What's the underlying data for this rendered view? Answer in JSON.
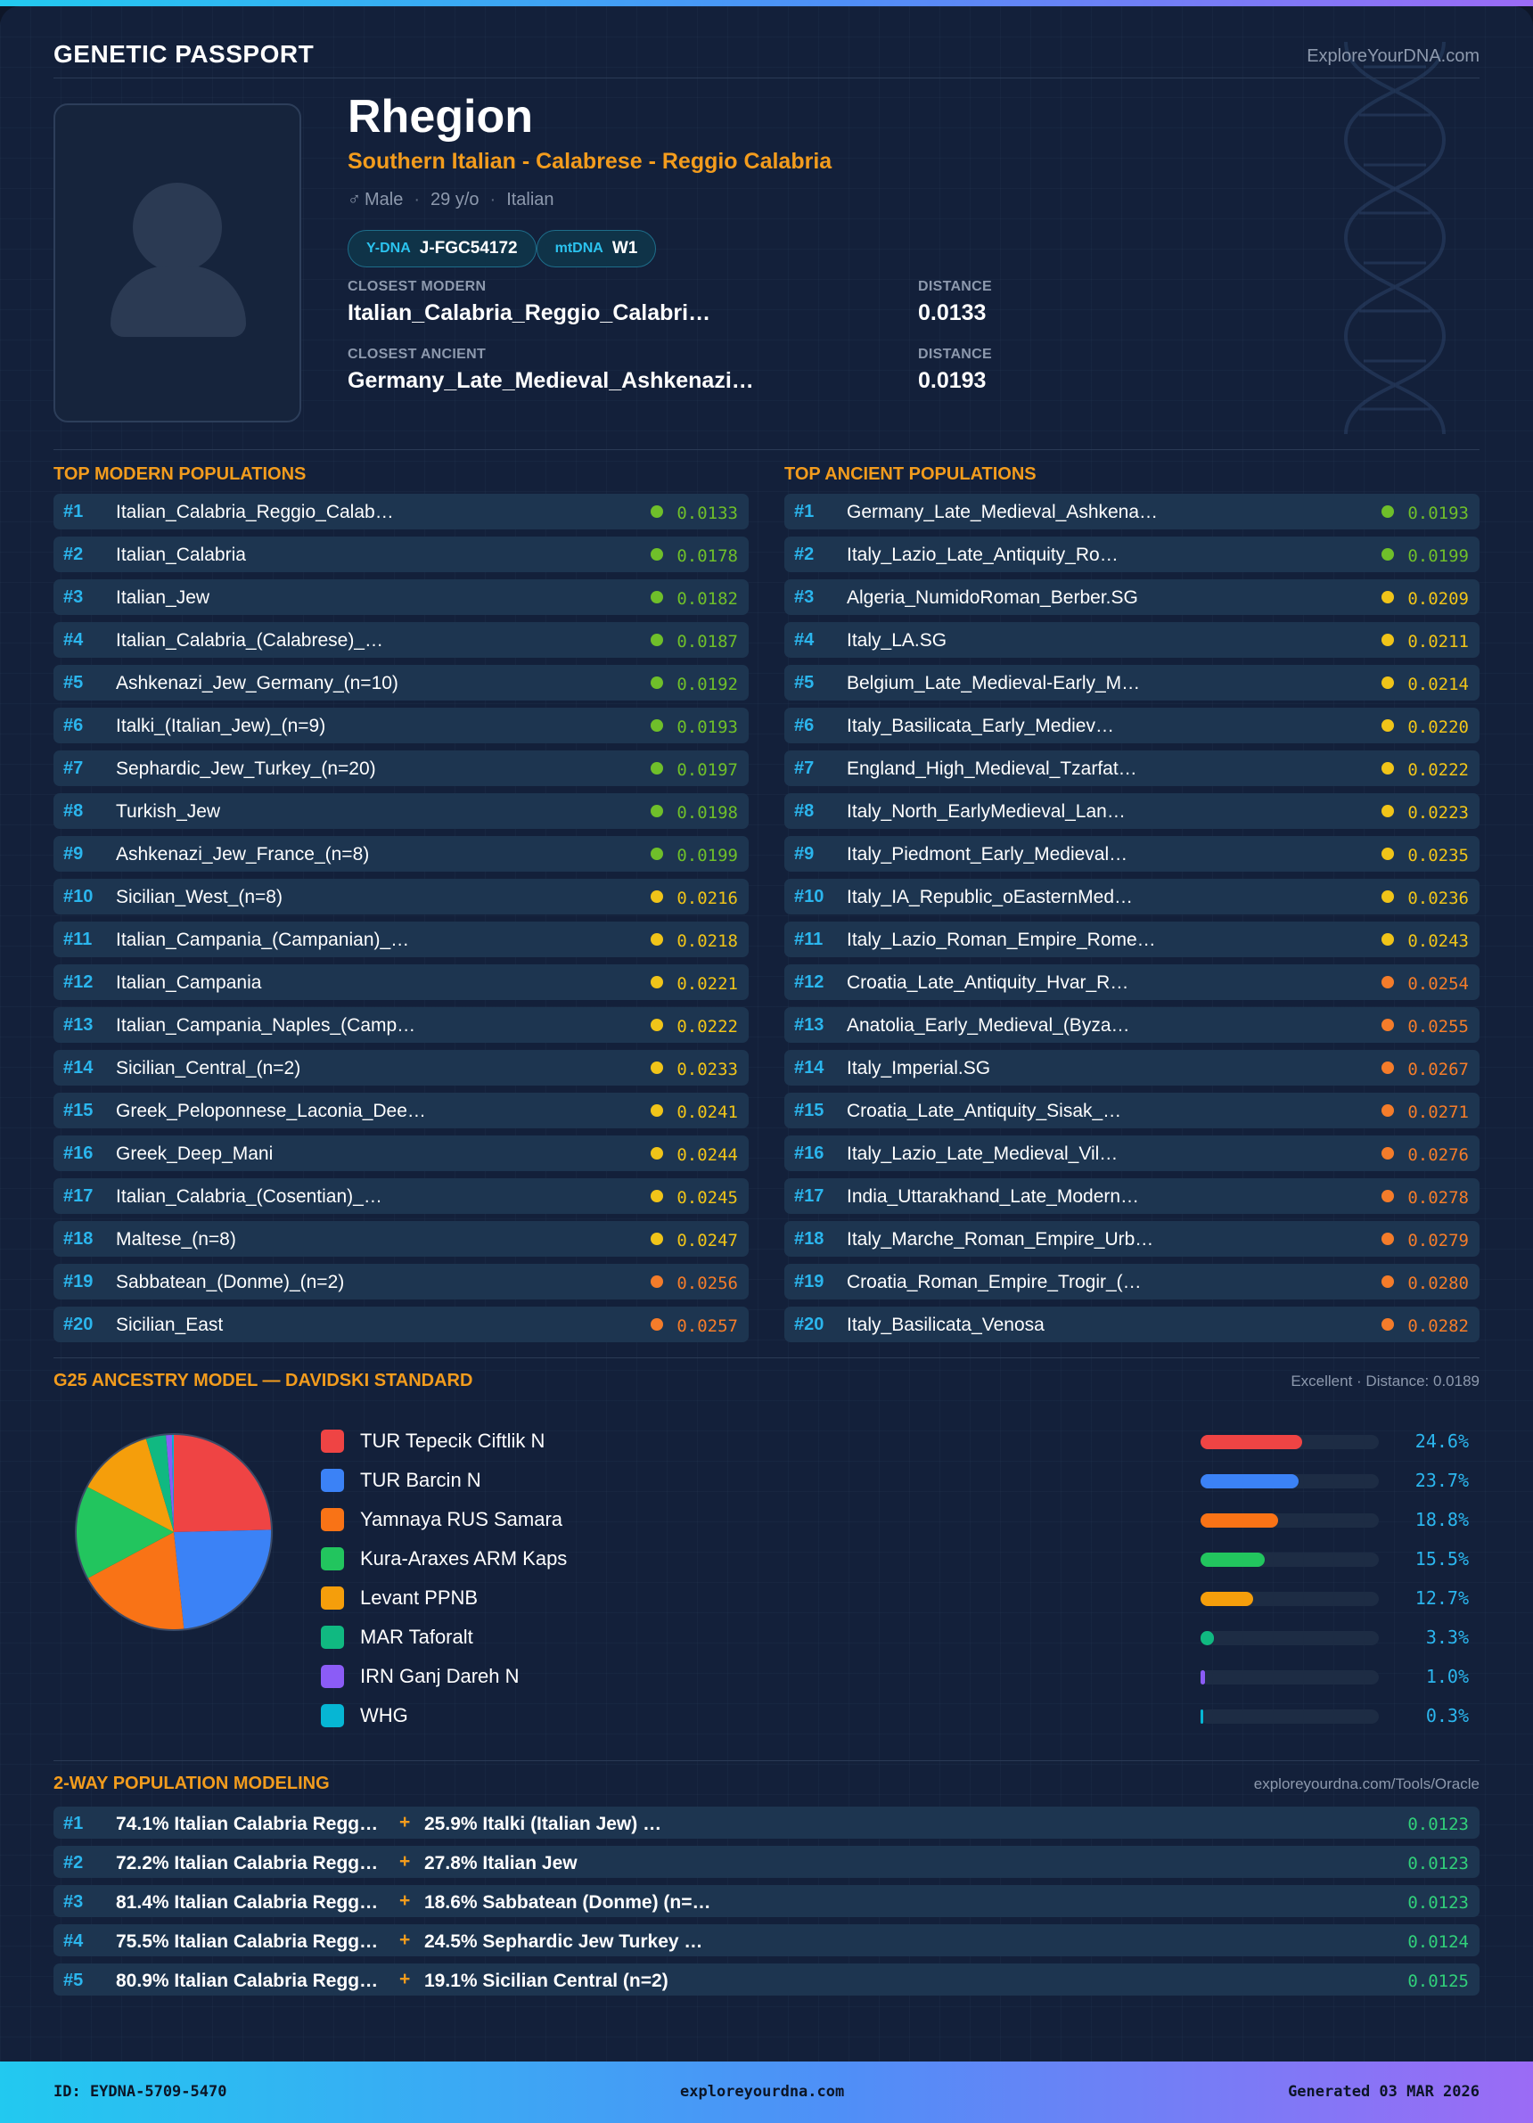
{
  "header": {
    "brand": "GENETIC PASSPORT",
    "site": "ExploreYourDNA.com"
  },
  "profile": {
    "name": "Rhegion",
    "subtitle": "Southern Italian - Calabrese - Reggio Calabria",
    "sex_symbol": "♂",
    "sex": "Male",
    "age": "29 y/o",
    "ethnicity": "Italian",
    "ydna_label": "Y-DNA",
    "ydna": "J-FGC54172",
    "mtdna_label": "mtDNA",
    "mtdna": "W1",
    "closest_modern_label": "CLOSEST MODERN",
    "closest_modern": "Italian_Calabria_Reggio_Calabri…",
    "closest_modern_distance_label": "DISTANCE",
    "closest_modern_distance": "0.0133",
    "closest_ancient_label": "CLOSEST ANCIENT",
    "closest_ancient": "Germany_Late_Medieval_Ashkenazi…",
    "closest_ancient_distance_label": "DISTANCE",
    "closest_ancient_distance": "0.0193"
  },
  "modern": {
    "title": "TOP MODERN POPULATIONS",
    "rows": [
      {
        "rank": "#1",
        "name": "Italian_Calabria_Reggio_Calab…",
        "distance": "0.0133",
        "tier": "green"
      },
      {
        "rank": "#2",
        "name": "Italian_Calabria",
        "distance": "0.0178",
        "tier": "green"
      },
      {
        "rank": "#3",
        "name": "Italian_Jew",
        "distance": "0.0182",
        "tier": "green"
      },
      {
        "rank": "#4",
        "name": "Italian_Calabria_(Calabrese)_…",
        "distance": "0.0187",
        "tier": "green"
      },
      {
        "rank": "#5",
        "name": "Ashkenazi_Jew_Germany_(n=10)",
        "distance": "0.0192",
        "tier": "green"
      },
      {
        "rank": "#6",
        "name": "Italki_(Italian_Jew)_(n=9)",
        "distance": "0.0193",
        "tier": "green"
      },
      {
        "rank": "#7",
        "name": "Sephardic_Jew_Turkey_(n=20)",
        "distance": "0.0197",
        "tier": "green"
      },
      {
        "rank": "#8",
        "name": "Turkish_Jew",
        "distance": "0.0198",
        "tier": "green"
      },
      {
        "rank": "#9",
        "name": "Ashkenazi_Jew_France_(n=8)",
        "distance": "0.0199",
        "tier": "green"
      },
      {
        "rank": "#10",
        "name": "Sicilian_West_(n=8)",
        "distance": "0.0216",
        "tier": "yellow"
      },
      {
        "rank": "#11",
        "name": "Italian_Campania_(Campanian)_…",
        "distance": "0.0218",
        "tier": "yellow"
      },
      {
        "rank": "#12",
        "name": "Italian_Campania",
        "distance": "0.0221",
        "tier": "yellow"
      },
      {
        "rank": "#13",
        "name": "Italian_Campania_Naples_(Camp…",
        "distance": "0.0222",
        "tier": "yellow"
      },
      {
        "rank": "#14",
        "name": "Sicilian_Central_(n=2)",
        "distance": "0.0233",
        "tier": "yellow"
      },
      {
        "rank": "#15",
        "name": "Greek_Peloponnese_Laconia_Dee…",
        "distance": "0.0241",
        "tier": "yellow"
      },
      {
        "rank": "#16",
        "name": "Greek_Deep_Mani",
        "distance": "0.0244",
        "tier": "yellow"
      },
      {
        "rank": "#17",
        "name": "Italian_Calabria_(Cosentian)_…",
        "distance": "0.0245",
        "tier": "yellow"
      },
      {
        "rank": "#18",
        "name": "Maltese_(n=8)",
        "distance": "0.0247",
        "tier": "yellow"
      },
      {
        "rank": "#19",
        "name": "Sabbatean_(Donme)_(n=2)",
        "distance": "0.0256",
        "tier": "orange"
      },
      {
        "rank": "#20",
        "name": "Sicilian_East",
        "distance": "0.0257",
        "tier": "orange"
      }
    ]
  },
  "ancient": {
    "title": "TOP ANCIENT POPULATIONS",
    "rows": [
      {
        "rank": "#1",
        "name": "Germany_Late_Medieval_Ashkena…",
        "distance": "0.0193",
        "tier": "green"
      },
      {
        "rank": "#2",
        "name": "Italy_Lazio_Late_Antiquity_Ro…",
        "distance": "0.0199",
        "tier": "green"
      },
      {
        "rank": "#3",
        "name": "Algeria_NumidoRoman_Berber.SG",
        "distance": "0.0209",
        "tier": "yellow"
      },
      {
        "rank": "#4",
        "name": "Italy_LA.SG",
        "distance": "0.0211",
        "tier": "yellow"
      },
      {
        "rank": "#5",
        "name": "Belgium_Late_Medieval-Early_M…",
        "distance": "0.0214",
        "tier": "yellow"
      },
      {
        "rank": "#6",
        "name": "Italy_Basilicata_Early_Mediev…",
        "distance": "0.0220",
        "tier": "yellow"
      },
      {
        "rank": "#7",
        "name": "England_High_Medieval_Tzarfat…",
        "distance": "0.0222",
        "tier": "yellow"
      },
      {
        "rank": "#8",
        "name": "Italy_North_EarlyMedieval_Lan…",
        "distance": "0.0223",
        "tier": "yellow"
      },
      {
        "rank": "#9",
        "name": "Italy_Piedmont_Early_Medieval…",
        "distance": "0.0235",
        "tier": "yellow"
      },
      {
        "rank": "#10",
        "name": "Italy_IA_Republic_oEasternMed…",
        "distance": "0.0236",
        "tier": "yellow"
      },
      {
        "rank": "#11",
        "name": "Italy_Lazio_Roman_Empire_Rome…",
        "distance": "0.0243",
        "tier": "yellow"
      },
      {
        "rank": "#12",
        "name": "Croatia_Late_Antiquity_Hvar_R…",
        "distance": "0.0254",
        "tier": "orange"
      },
      {
        "rank": "#13",
        "name": "Anatolia_Early_Medieval_(Byza…",
        "distance": "0.0255",
        "tier": "orange"
      },
      {
        "rank": "#14",
        "name": "Italy_Imperial.SG",
        "distance": "0.0267",
        "tier": "orange"
      },
      {
        "rank": "#15",
        "name": "Croatia_Late_Antiquity_Sisak_…",
        "distance": "0.0271",
        "tier": "orange"
      },
      {
        "rank": "#16",
        "name": "Italy_Lazio_Late_Medieval_Vil…",
        "distance": "0.0276",
        "tier": "orange"
      },
      {
        "rank": "#17",
        "name": "India_Uttarakhand_Late_Modern…",
        "distance": "0.0278",
        "tier": "orange"
      },
      {
        "rank": "#18",
        "name": "Italy_Marche_Roman_Empire_Urb…",
        "distance": "0.0279",
        "tier": "orange"
      },
      {
        "rank": "#19",
        "name": "Croatia_Roman_Empire_Trogir_(…",
        "distance": "0.0280",
        "tier": "orange"
      },
      {
        "rank": "#20",
        "name": "Italy_Basilicata_Venosa",
        "distance": "0.0282",
        "tier": "orange"
      }
    ]
  },
  "tier_colors": {
    "green": "#6fbf2a",
    "yellow": "#f0c419",
    "orange": "#f47c2a"
  },
  "ancestry": {
    "title": "G25 ANCESTRY MODEL — DAVIDSKI STANDARD",
    "note": "Excellent · Distance: 0.0189"
  },
  "chart_data": {
    "type": "pie",
    "title": "",
    "categories": [
      "TUR Tepecik Ciftlik N",
      "TUR Barcin N",
      "Yamnaya RUS Samara",
      "Kura-Araxes ARM Kaps",
      "Levant PPNB",
      "MAR Taforalt",
      "IRN Ganj Dareh N",
      "WHG"
    ],
    "values": [
      24.6,
      23.7,
      18.8,
      15.5,
      12.7,
      3.3,
      1.0,
      0.3
    ],
    "labels": [
      "24.6%",
      "23.7%",
      "18.8%",
      "15.5%",
      "12.7%",
      "3.3%",
      "1.0%",
      "0.3%"
    ],
    "colors": [
      "#ef4444",
      "#3b82f6",
      "#f97316",
      "#22c55e",
      "#f59e0b",
      "#10b981",
      "#8b5cf6",
      "#06b6d4"
    ],
    "legend": "right"
  },
  "modeling": {
    "title": "2-WAY POPULATION MODELING",
    "note": "exploreyourdna.com/Tools/Oracle",
    "plus": "+",
    "rows": [
      {
        "rank": "#1",
        "a": "74.1% Italian Calabria Regg…",
        "b": "25.9% Italki (Italian Jew) …",
        "distance": "0.0123"
      },
      {
        "rank": "#2",
        "a": "72.2% Italian Calabria Regg…",
        "b": "27.8% Italian Jew",
        "distance": "0.0123"
      },
      {
        "rank": "#3",
        "a": "81.4% Italian Calabria Regg…",
        "b": "18.6% Sabbatean (Donme) (n=…",
        "distance": "0.0123"
      },
      {
        "rank": "#4",
        "a": "75.5% Italian Calabria Regg…",
        "b": "24.5% Sephardic Jew Turkey …",
        "distance": "0.0124"
      },
      {
        "rank": "#5",
        "a": "80.9% Italian Calabria Regg…",
        "b": "19.1% Sicilian Central (n=2)",
        "distance": "0.0125"
      }
    ]
  },
  "footer": {
    "id": "ID: EYDNA-5709-5470",
    "site": "exploreyourdna.com",
    "generated": "Generated 03 MAR 2026"
  }
}
